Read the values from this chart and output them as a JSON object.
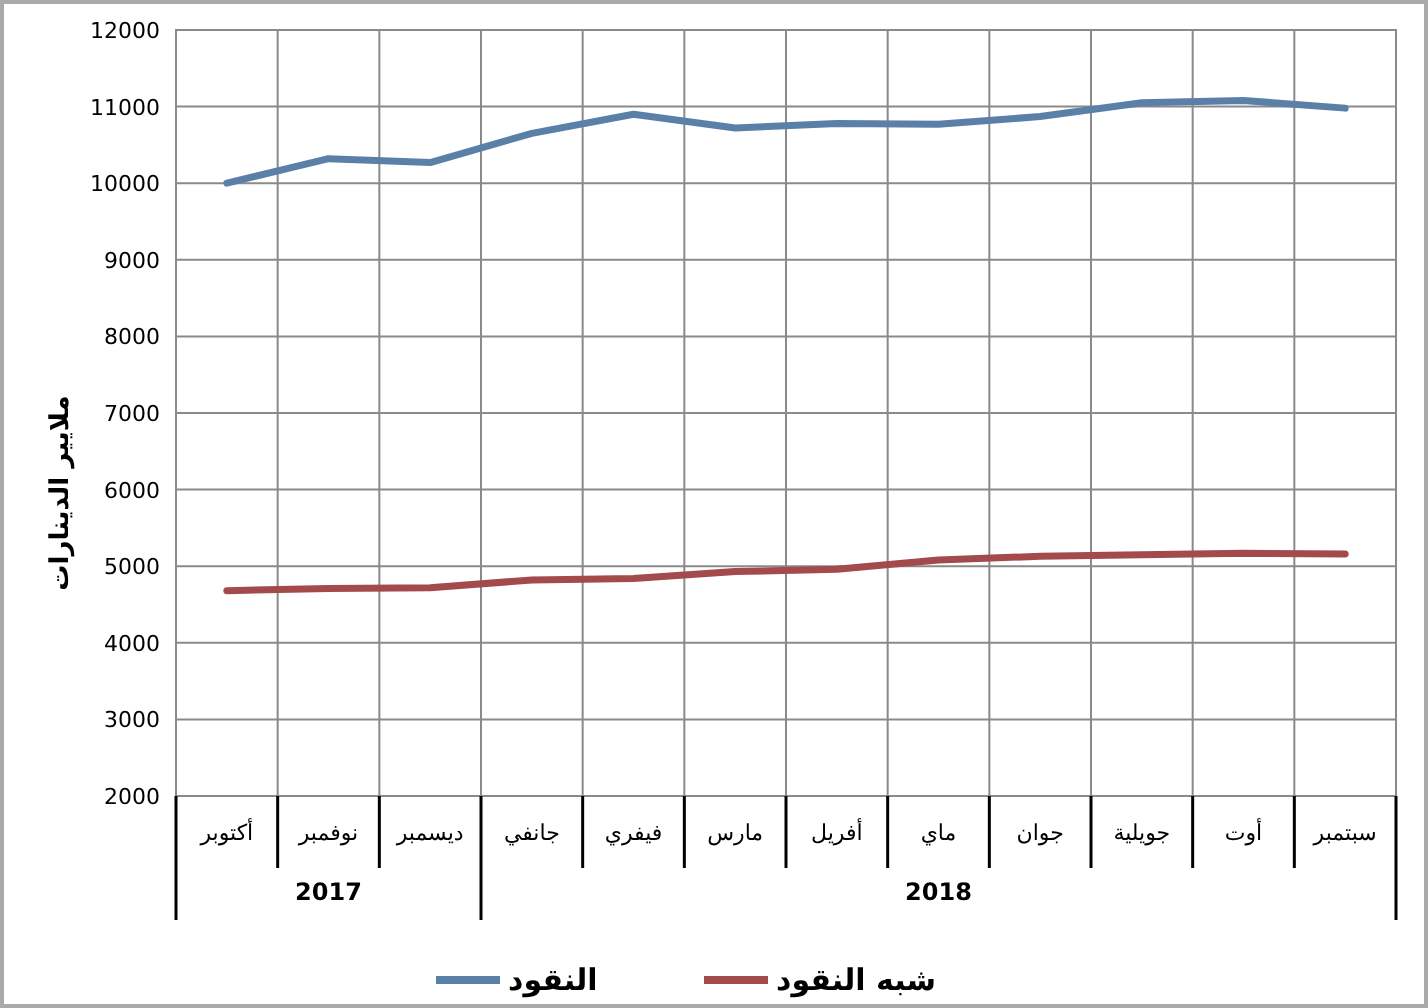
{
  "chart_data": {
    "type": "line",
    "ylabel": "ملايير الدينارات",
    "categories": [
      "أكتوبر",
      "نوفمبر",
      "ديسمبر",
      "جانفي",
      "فيفري",
      "مارس",
      "أفريل",
      "ماي",
      "جوان",
      "جويلية",
      "أوت",
      "سبتمبر"
    ],
    "series": [
      {
        "name": "النقود",
        "color": "#5b80a8",
        "values": [
          10000,
          10320,
          10270,
          10650,
          10900,
          10720,
          10780,
          10770,
          10870,
          11050,
          11080,
          10980
        ]
      },
      {
        "name": "شبه النقود",
        "color": "#a24a4c",
        "values": [
          4680,
          4710,
          4720,
          4820,
          4840,
          4930,
          4960,
          5080,
          5130,
          5150,
          5170,
          5160
        ]
      }
    ],
    "ylim": [
      2000,
      12000
    ],
    "yticks": [
      2000,
      3000,
      4000,
      5000,
      6000,
      7000,
      8000,
      9000,
      10000,
      11000,
      12000
    ],
    "annotations": [
      "2017",
      "2018"
    ],
    "grid": true,
    "legend": "bottom",
    "marker": "none",
    "line_style": "solid"
  }
}
